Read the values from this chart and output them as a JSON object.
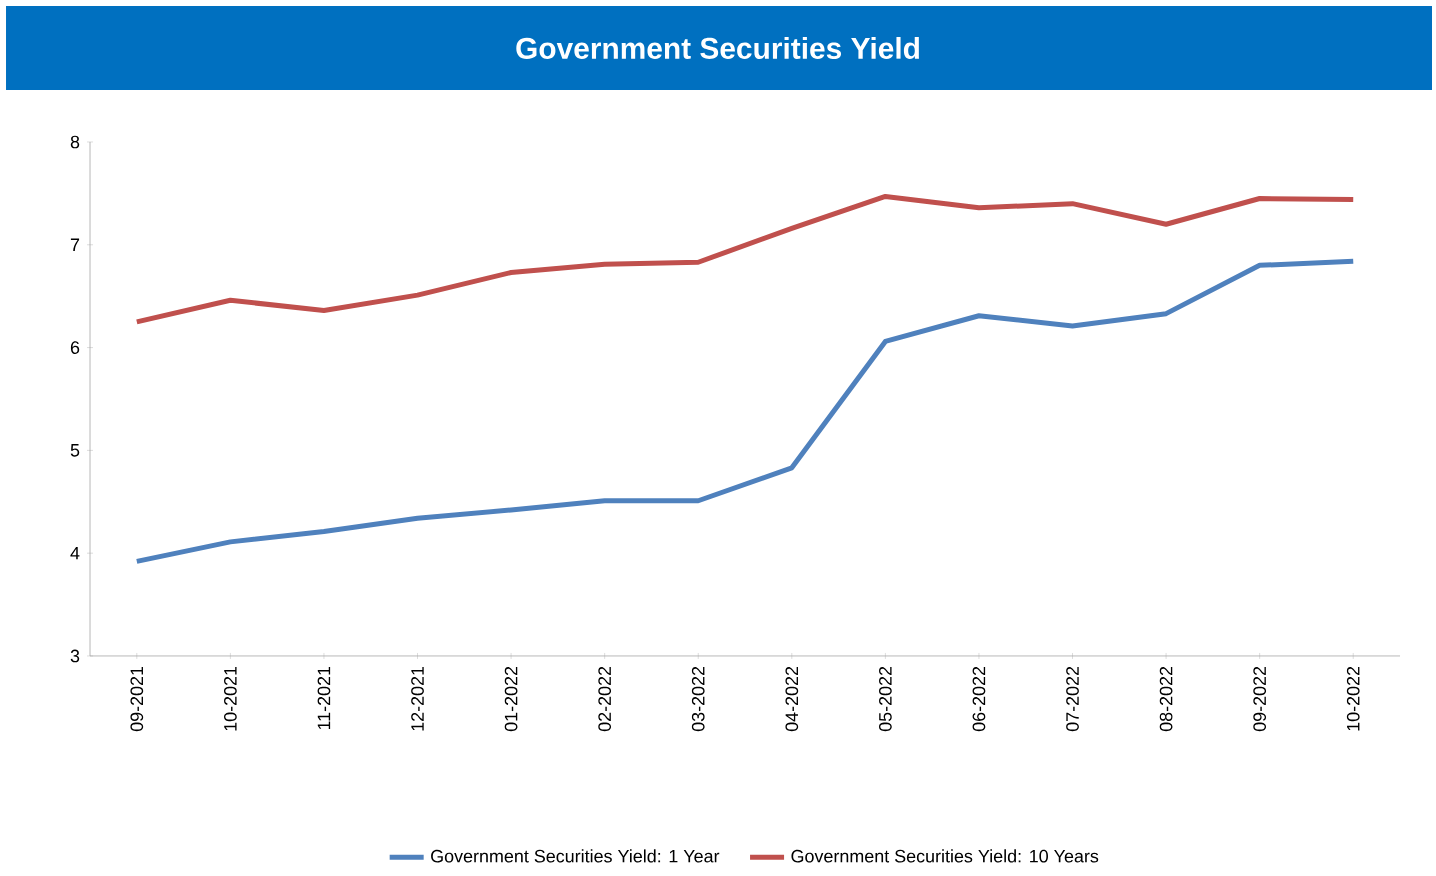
{
  "chart_data": {
    "type": "line",
    "title": "Government Securities Yield",
    "categories": [
      "09-2021",
      "10-2021",
      "11-2021",
      "12-2021",
      "01-2022",
      "02-2022",
      "03-2022",
      "04-2022",
      "05-2022",
      "06-2022",
      "07-2022",
      "08-2022",
      "09-2022",
      "10-2022"
    ],
    "series": [
      {
        "name": "Government Securities Yield: 1 Year",
        "color": "#4f81bd",
        "values": [
          3.92,
          4.11,
          4.21,
          4.34,
          4.42,
          4.51,
          4.51,
          4.83,
          6.06,
          6.31,
          6.21,
          6.33,
          6.8,
          6.84
        ]
      },
      {
        "name": "Government Securities Yield: 10 Years",
        "color": "#c0504d",
        "values": [
          6.25,
          6.46,
          6.36,
          6.51,
          6.73,
          6.81,
          6.83,
          7.16,
          7.47,
          7.36,
          7.4,
          7.2,
          7.45,
          7.44
        ]
      }
    ],
    "ylim": [
      3,
      8
    ],
    "yticks": [
      3,
      4,
      5,
      6,
      7,
      8
    ],
    "grid": false,
    "legend": "bottom",
    "marker": "none",
    "line_style": "solid"
  }
}
